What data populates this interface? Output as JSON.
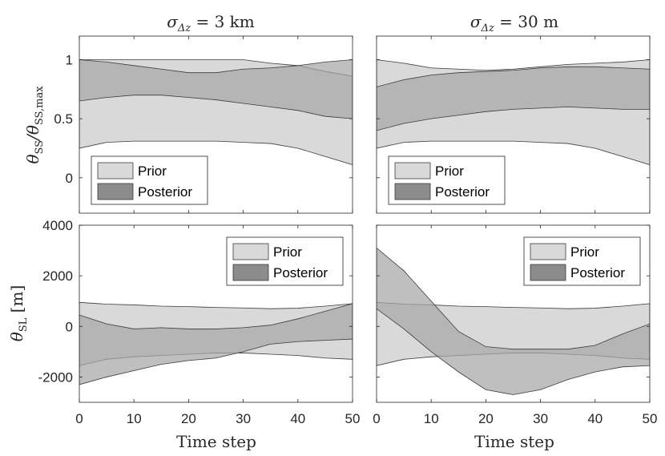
{
  "colors": {
    "prior": "#d9d9d9",
    "posterior": "#a6a6a6",
    "overlap": "#8c8c8c",
    "axis": "#262626",
    "edge": "#3a3a3a"
  },
  "columns": [
    {
      "title_prefix": "σ",
      "title_sub": "Δz",
      "title_value": " = 3 km"
    },
    {
      "title_prefix": "σ",
      "title_sub": "Δz",
      "title_value": " = 30 m"
    }
  ],
  "row_labels": {
    "top": {
      "main": "θ",
      "sub": "SS",
      "slash": "/θ",
      "sub2": "SS,max"
    },
    "bottom": {
      "main": "θ",
      "sub": "SL",
      "unit": "  [m]"
    }
  },
  "xlabel": "Time step",
  "legend": {
    "prior": "Prior",
    "posterior": "Posterior"
  },
  "chart_data": [
    {
      "type": "area",
      "panel": "top-left",
      "legend_position": "bottom-left",
      "xlim": [
        0,
        50
      ],
      "ylim": [
        -0.3,
        1.2
      ],
      "xticks": [
        "0",
        "10",
        "20",
        "30",
        "40",
        "50"
      ],
      "yticks": [
        "0",
        "0.5",
        "1"
      ],
      "x": [
        0,
        5,
        10,
        15,
        20,
        25,
        30,
        35,
        40,
        45,
        50
      ],
      "series": [
        {
          "name": "Prior",
          "lower": [
            0.25,
            0.3,
            0.31,
            0.31,
            0.31,
            0.31,
            0.3,
            0.29,
            0.25,
            0.18,
            0.11
          ],
          "upper": [
            1.0,
            1.0,
            1.0,
            1.0,
            1.0,
            1.0,
            1.0,
            0.97,
            0.95,
            0.9,
            0.86
          ]
        },
        {
          "name": "Posterior",
          "lower": [
            0.65,
            0.68,
            0.7,
            0.7,
            0.68,
            0.66,
            0.63,
            0.6,
            0.57,
            0.52,
            0.5
          ],
          "upper": [
            1.0,
            0.98,
            0.95,
            0.92,
            0.89,
            0.89,
            0.92,
            0.93,
            0.95,
            0.98,
            1.0
          ]
        }
      ]
    },
    {
      "type": "area",
      "panel": "top-right",
      "legend_position": "bottom-left",
      "xlim": [
        0,
        50
      ],
      "ylim": [
        -0.3,
        1.2
      ],
      "xticks": [
        "0",
        "10",
        "20",
        "30",
        "40",
        "50"
      ],
      "yticks": [
        "0",
        "0.5",
        "1"
      ],
      "x": [
        0,
        5,
        10,
        15,
        20,
        25,
        30,
        35,
        40,
        45,
        50
      ],
      "series": [
        {
          "name": "Prior",
          "lower": [
            0.25,
            0.3,
            0.31,
            0.31,
            0.31,
            0.31,
            0.3,
            0.29,
            0.25,
            0.18,
            0.11
          ],
          "upper": [
            1.0,
            0.97,
            0.93,
            0.92,
            0.91,
            0.92,
            0.94,
            0.96,
            0.97,
            0.98,
            1.0
          ]
        },
        {
          "name": "Posterior",
          "lower": [
            0.4,
            0.46,
            0.5,
            0.53,
            0.56,
            0.58,
            0.59,
            0.6,
            0.59,
            0.58,
            0.58
          ],
          "upper": [
            0.77,
            0.83,
            0.87,
            0.89,
            0.9,
            0.91,
            0.93,
            0.94,
            0.94,
            0.93,
            0.92
          ]
        }
      ]
    },
    {
      "type": "area",
      "panel": "bottom-left",
      "legend_position": "top-right",
      "xlim": [
        0,
        50
      ],
      "ylim": [
        -3000,
        4000
      ],
      "xticks": [
        "0",
        "10",
        "20",
        "30",
        "40",
        "50"
      ],
      "yticks": [
        "-2000",
        "0",
        "2000",
        "4000"
      ],
      "x": [
        0,
        5,
        10,
        15,
        20,
        25,
        30,
        35,
        40,
        45,
        50
      ],
      "series": [
        {
          "name": "Prior",
          "lower": [
            -1550,
            -1300,
            -1200,
            -1150,
            -1100,
            -1050,
            -1050,
            -1100,
            -1150,
            -1250,
            -1300
          ],
          "upper": [
            950,
            880,
            850,
            800,
            780,
            750,
            730,
            700,
            720,
            800,
            900
          ]
        },
        {
          "name": "Posterior",
          "lower": [
            -2300,
            -2000,
            -1750,
            -1500,
            -1350,
            -1250,
            -1000,
            -700,
            -600,
            -550,
            -500
          ],
          "upper": [
            450,
            100,
            -100,
            -50,
            -100,
            -100,
            -50,
            50,
            300,
            600,
            900
          ]
        }
      ]
    },
    {
      "type": "area",
      "panel": "bottom-right",
      "legend_position": "top-right",
      "xlim": [
        0,
        50
      ],
      "ylim": [
        -3000,
        4000
      ],
      "xticks": [
        "0",
        "10",
        "20",
        "30",
        "40",
        "50"
      ],
      "yticks": [
        "-2000",
        "0",
        "2000",
        "4000"
      ],
      "x": [
        0,
        5,
        10,
        15,
        20,
        25,
        30,
        35,
        40,
        45,
        50
      ],
      "series": [
        {
          "name": "Prior",
          "lower": [
            -1550,
            -1300,
            -1200,
            -1150,
            -1100,
            -1050,
            -1050,
            -1100,
            -1150,
            -1250,
            -1300
          ],
          "upper": [
            950,
            880,
            850,
            800,
            780,
            750,
            730,
            700,
            720,
            800,
            900
          ]
        },
        {
          "name": "Posterior",
          "lower": [
            700,
            -100,
            -1000,
            -1800,
            -2500,
            -2700,
            -2500,
            -2100,
            -1800,
            -1600,
            -1550
          ],
          "upper": [
            3100,
            2200,
            1000,
            -200,
            -800,
            -900,
            -900,
            -900,
            -750,
            -300,
            100
          ]
        }
      ]
    }
  ]
}
